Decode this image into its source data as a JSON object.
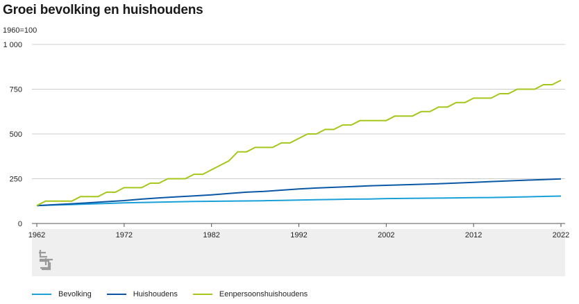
{
  "chart_data": {
    "type": "line",
    "title": "Groei bevolking en huishoudens",
    "unit_label": "1960=100",
    "xlim": [
      1962,
      2022
    ],
    "ylim": [
      0,
      1000
    ],
    "y_ticks": [
      {
        "value": 0,
        "label": "0"
      },
      {
        "value": 250,
        "label": "250"
      },
      {
        "value": 500,
        "label": "500"
      },
      {
        "value": 750,
        "label": "750"
      },
      {
        "value": 1000,
        "label": "1 000"
      }
    ],
    "x_ticks": [
      {
        "value": 1962,
        "label": "1962"
      },
      {
        "value": 1972,
        "label": "1972"
      },
      {
        "value": 1982,
        "label": "1982"
      },
      {
        "value": 1992,
        "label": "1992"
      },
      {
        "value": 2002,
        "label": "2002"
      },
      {
        "value": 2012,
        "label": "2012"
      },
      {
        "value": 2022,
        "label": "2022"
      }
    ],
    "grid": true,
    "legend_position": "bottom",
    "series": [
      {
        "name": "Bevolking",
        "color": "#1aa0d8",
        "x": [
          1962,
          1964,
          1966,
          1968,
          1970,
          1972,
          1974,
          1976,
          1978,
          1980,
          1982,
          1984,
          1986,
          1988,
          1990,
          1992,
          1994,
          1996,
          1998,
          2000,
          2002,
          2004,
          2006,
          2008,
          2010,
          2012,
          2014,
          2016,
          2018,
          2020,
          2022
        ],
        "y": [
          100,
          103,
          106,
          109,
          112,
          115,
          117,
          119,
          121,
          123,
          124,
          125,
          126,
          127,
          129,
          131,
          133,
          134,
          136,
          137,
          139,
          140,
          141,
          142,
          143,
          144,
          145,
          147,
          149,
          151,
          153
        ]
      },
      {
        "name": "Huishoudens",
        "color": "#0a58a5",
        "x": [
          1962,
          1964,
          1966,
          1968,
          1970,
          1972,
          1974,
          1976,
          1978,
          1980,
          1982,
          1984,
          1986,
          1988,
          1990,
          1992,
          1994,
          1996,
          1998,
          2000,
          2002,
          2004,
          2006,
          2008,
          2010,
          2012,
          2014,
          2016,
          2018,
          2020,
          2022
        ],
        "y": [
          100,
          105,
          110,
          116,
          122,
          128,
          136,
          143,
          149,
          154,
          160,
          168,
          175,
          179,
          186,
          193,
          198,
          202,
          206,
          210,
          213,
          216,
          219,
          222,
          226,
          230,
          234,
          238,
          242,
          245,
          249
        ]
      },
      {
        "name": "Eenpersoonshuishoudens",
        "color": "#a5c61a",
        "x": [
          1962,
          1963,
          1964,
          1965,
          1966,
          1967,
          1968,
          1969,
          1970,
          1971,
          1972,
          1973,
          1974,
          1975,
          1976,
          1977,
          1978,
          1979,
          1980,
          1981,
          1982,
          1983,
          1984,
          1985,
          1986,
          1987,
          1988,
          1989,
          1990,
          1991,
          1992,
          1993,
          1994,
          1995,
          1996,
          1997,
          1998,
          1999,
          2000,
          2001,
          2002,
          2003,
          2004,
          2005,
          2006,
          2007,
          2008,
          2009,
          2010,
          2011,
          2012,
          2013,
          2014,
          2015,
          2016,
          2017,
          2018,
          2019,
          2020,
          2021,
          2022
        ],
        "y": [
          100,
          125,
          125,
          125,
          125,
          150,
          150,
          150,
          175,
          175,
          200,
          200,
          200,
          225,
          225,
          250,
          250,
          250,
          275,
          275,
          300,
          325,
          350,
          400,
          400,
          425,
          425,
          425,
          450,
          450,
          475,
          500,
          500,
          525,
          525,
          550,
          550,
          575,
          575,
          575,
          575,
          600,
          600,
          600,
          625,
          625,
          650,
          650,
          675,
          675,
          700,
          700,
          700,
          725,
          725,
          750,
          750,
          750,
          775,
          775,
          800
        ]
      }
    ]
  }
}
